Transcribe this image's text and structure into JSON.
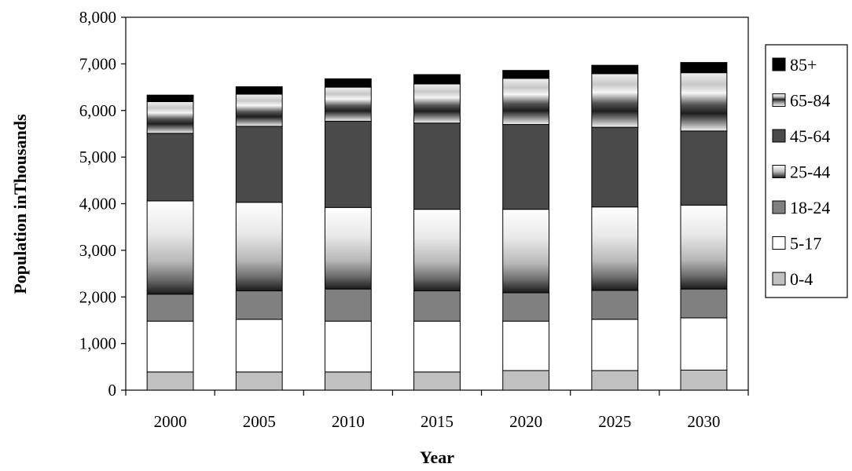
{
  "chart_data": {
    "type": "bar",
    "stacked": true,
    "categories": [
      "2000",
      "2005",
      "2010",
      "2015",
      "2020",
      "2025",
      "2030"
    ],
    "series": [
      {
        "name": "0-4",
        "color": "#c0c0c0",
        "fill": "solid",
        "values": [
          390,
          390,
          390,
          390,
          420,
          420,
          430
        ]
      },
      {
        "name": "5-17",
        "color": "#ffffff",
        "fill": "solid",
        "values": [
          1090,
          1130,
          1090,
          1090,
          1060,
          1100,
          1120
        ]
      },
      {
        "name": "18-24",
        "color": "#808080",
        "fill": "solid",
        "values": [
          580,
          610,
          690,
          650,
          610,
          620,
          620
        ]
      },
      {
        "name": "25-44",
        "color": "#e0e0e0",
        "fill": "gradient",
        "values": [
          2000,
          1900,
          1750,
          1750,
          1790,
          1790,
          1800
        ]
      },
      {
        "name": "45-64",
        "color": "#4a4a4a",
        "fill": "solid",
        "values": [
          1450,
          1630,
          1850,
          1850,
          1820,
          1710,
          1590
        ]
      },
      {
        "name": "65-84",
        "color": "#d0d0d0",
        "fill": "banded",
        "values": [
          680,
          690,
          730,
          840,
          990,
          1150,
          1250
        ]
      },
      {
        "name": "85+",
        "color": "#000000",
        "fill": "solid",
        "values": [
          140,
          160,
          180,
          200,
          170,
          180,
          220
        ]
      }
    ],
    "ylim": [
      0,
      8000
    ],
    "yticks": [
      "0",
      "1,000",
      "2,000",
      "3,000",
      "4,000",
      "5,000",
      "6,000",
      "7,000",
      "8,000"
    ],
    "xlabel": "Year",
    "ylabel": "Population inThousands",
    "grid": false,
    "legend_position": "right"
  }
}
